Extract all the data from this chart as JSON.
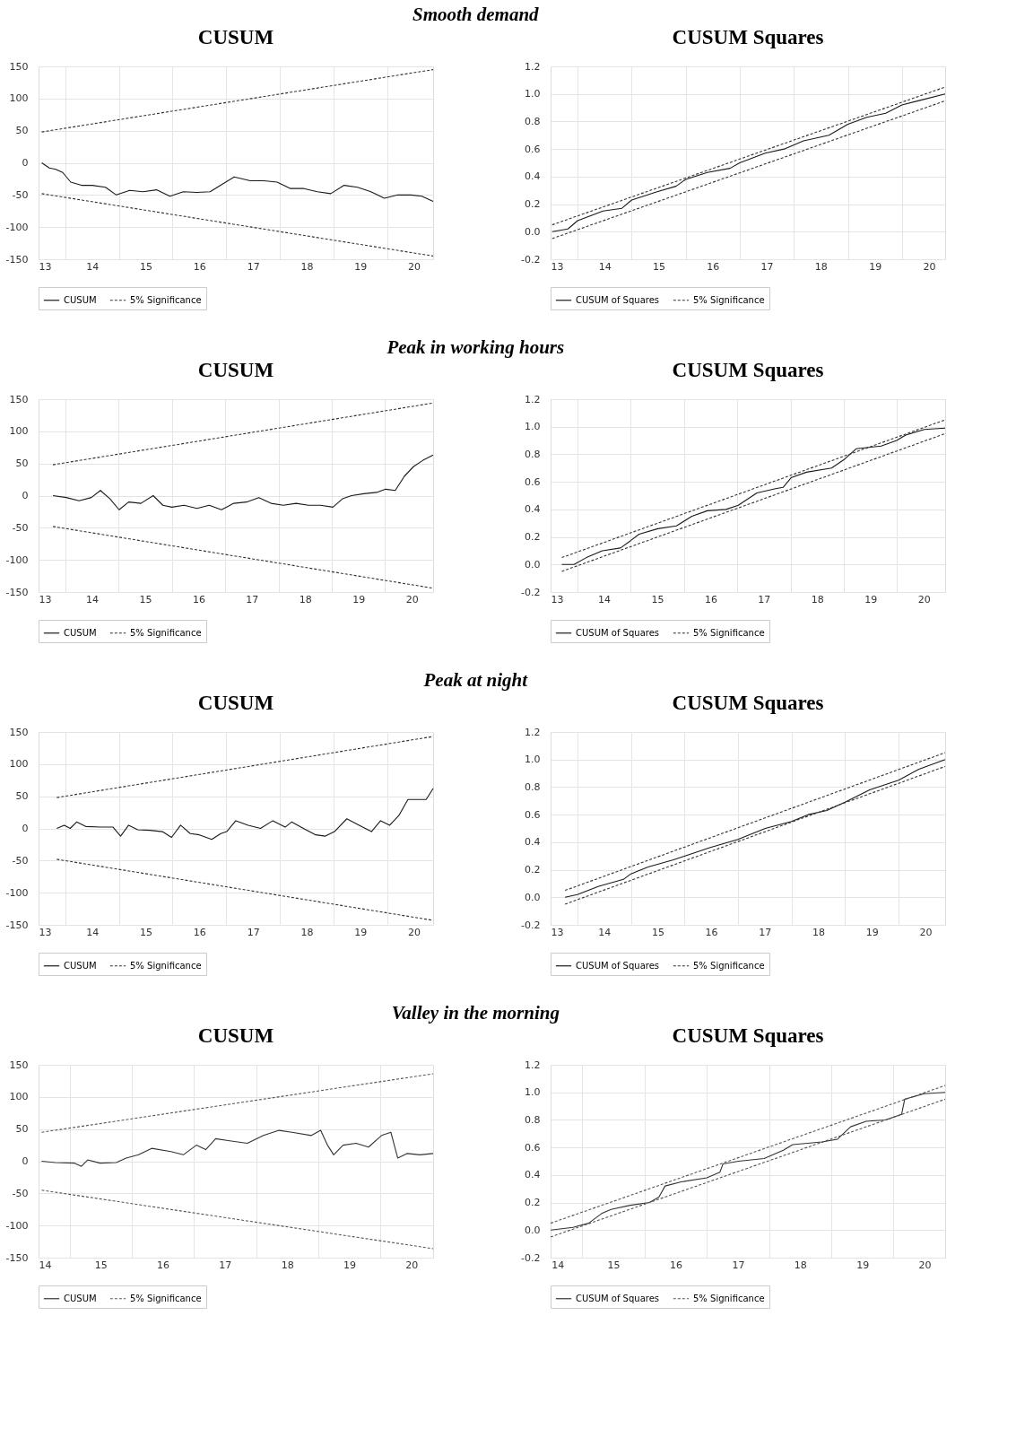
{
  "chart_data": [
    {
      "type": "line",
      "title": "CUSUM",
      "annotations": [
        "Smooth demand"
      ],
      "xlim": [
        13,
        20.36
      ],
      "ylim": [
        -150,
        150
      ],
      "yticks": [
        -150,
        -100,
        -50,
        0,
        50,
        100,
        150
      ],
      "grid": true,
      "legend": "bottom",
      "xticks": [
        13,
        {
          "value": 13.5,
          "label": null
        },
        14,
        {
          "value": 14.5,
          "label": null
        },
        15,
        {
          "value": 15.5,
          "label": null
        },
        16,
        {
          "value": 16.5,
          "label": null
        },
        17,
        {
          "value": 17.5,
          "label": null
        },
        18,
        {
          "value": 18.5,
          "label": null
        },
        19,
        {
          "value": 19.5,
          "label": null
        },
        20
      ],
      "series": [
        {
          "name": "CUSUM",
          "color": "#1a1a1a",
          "line_style": "solid",
          "x": [
            13.06,
            13.2,
            13.32,
            13.45,
            13.6,
            13.8,
            14.0,
            14.25,
            14.45,
            14.7,
            14.95,
            15.2,
            15.45,
            15.7,
            15.95,
            16.2,
            16.45,
            16.65,
            16.95,
            17.2,
            17.45,
            17.7,
            17.95,
            18.2,
            18.45,
            18.7,
            18.95,
            19.2,
            19.45,
            19.7,
            19.95,
            20.15,
            20.36
          ],
          "values": [
            0,
            -8,
            -10,
            -15,
            -30,
            -35,
            -35,
            -38,
            -50,
            -43,
            -45,
            -42,
            -52,
            -45,
            -46,
            -45,
            -32,
            -22,
            -28,
            -28,
            -30,
            -40,
            -40,
            -45,
            -48,
            -35,
            -38,
            -45,
            -55,
            -50,
            -50,
            -52,
            -60
          ]
        },
        {
          "name": "5% Significance",
          "color": "#333333",
          "line_style": "dashed",
          "x": [
            13.06,
            20.36
          ],
          "values": [
            48,
            145
          ]
        },
        {
          "color": "#333333",
          "line_style": "dashed",
          "x": [
            13.06,
            20.36
          ],
          "values": [
            -48,
            -145
          ]
        }
      ]
    },
    {
      "type": "line",
      "title": "CUSUM Squares",
      "xlim": [
        13,
        20.3
      ],
      "ylim": [
        -0.2,
        1.2
      ],
      "yticks": [
        {
          "value": -0.2,
          "label": "-0.2"
        },
        {
          "value": 0,
          "label": "0.0"
        },
        {
          "value": 0.2,
          "label": "0.2"
        },
        {
          "value": 0.4,
          "label": "0.4"
        },
        {
          "value": 0.6,
          "label": "0.6"
        },
        {
          "value": 0.8,
          "label": "0.8"
        },
        {
          "value": 1,
          "label": "1.0"
        },
        {
          "value": 1.2,
          "label": "1.2"
        }
      ],
      "grid": true,
      "legend": "bottom",
      "xticks": [
        13,
        {
          "value": 13.5,
          "label": null
        },
        14,
        {
          "value": 14.5,
          "label": null
        },
        15,
        {
          "value": 15.5,
          "label": null
        },
        16,
        {
          "value": 16.5,
          "label": null
        },
        17,
        {
          "value": 17.5,
          "label": null
        },
        18,
        {
          "value": 18.5,
          "label": null
        },
        19,
        {
          "value": 19.5,
          "label": null
        },
        20
      ],
      "series": [
        {
          "name": "CUSUM of Squares",
          "color": "#1a1a1a",
          "line_style": "solid",
          "x": [
            13.03,
            13.32,
            13.5,
            13.97,
            14.32,
            14.5,
            14.97,
            15.32,
            15.5,
            15.9,
            16.32,
            16.5,
            16.97,
            17.32,
            17.68,
            18.15,
            18.5,
            18.85,
            19.2,
            19.5,
            19.9,
            20.3
          ],
          "values": [
            0,
            0.02,
            0.08,
            0.15,
            0.17,
            0.23,
            0.29,
            0.33,
            0.38,
            0.43,
            0.46,
            0.5,
            0.57,
            0.6,
            0.66,
            0.7,
            0.78,
            0.83,
            0.86,
            0.92,
            0.96,
            1.0
          ]
        },
        {
          "name": "5% Significance",
          "color": "#333333",
          "line_style": "dashed",
          "x": [
            13.03,
            20.3
          ],
          "values": [
            0.05,
            1.05
          ]
        },
        {
          "color": "#333333",
          "line_style": "dashed",
          "x": [
            13.03,
            20.3
          ],
          "values": [
            -0.05,
            0.95
          ]
        }
      ]
    },
    {
      "type": "line",
      "title": "CUSUM",
      "annotations": [
        "Peak in working hours"
      ],
      "xlim": [
        13,
        20.4
      ],
      "ylim": [
        -150,
        150
      ],
      "yticks": [
        -150,
        -100,
        -50,
        0,
        50,
        100,
        150
      ],
      "grid": true,
      "legend": "bottom",
      "xticks": [
        13,
        {
          "value": 13.5,
          "label": null
        },
        14,
        {
          "value": 14.5,
          "label": null
        },
        15,
        {
          "value": 15.5,
          "label": null
        },
        16,
        {
          "value": 16.5,
          "label": null
        },
        17,
        {
          "value": 17.5,
          "label": null
        },
        18,
        {
          "value": 18.5,
          "label": null
        },
        19,
        {
          "value": 19.5,
          "label": null
        },
        20
      ],
      "series": [
        {
          "name": "CUSUM",
          "color": "#1a1a1a",
          "line_style": "solid",
          "x": [
            13.27,
            13.52,
            13.76,
            13.99,
            14.16,
            14.34,
            14.51,
            14.69,
            14.92,
            15.15,
            15.33,
            15.5,
            15.73,
            15.97,
            16.2,
            16.43,
            16.66,
            16.9,
            17.13,
            17.36,
            17.59,
            17.83,
            18.06,
            18.29,
            18.52,
            18.7,
            18.87,
            19.1,
            19.34,
            19.51,
            19.69,
            19.86,
            20.03,
            20.21,
            20.4
          ],
          "values": [
            0,
            -3,
            -8,
            -3,
            8,
            -5,
            -22,
            -10,
            -12,
            0,
            -15,
            -18,
            -15,
            -20,
            -15,
            -22,
            -12,
            -10,
            -3,
            -12,
            -15,
            -12,
            -15,
            -15,
            -18,
            -5,
            0,
            3,
            5,
            10,
            8,
            30,
            45,
            55,
            63
          ]
        },
        {
          "name": "5% Significance",
          "color": "#333333",
          "line_style": "dashed",
          "x": [
            13.27,
            20.4
          ],
          "values": [
            48,
            144
          ]
        },
        {
          "color": "#333333",
          "line_style": "dashed",
          "x": [
            13.27,
            20.4
          ],
          "values": [
            -48,
            -144
          ]
        }
      ]
    },
    {
      "type": "line",
      "title": "CUSUM Squares",
      "xlim": [
        13,
        20.4
      ],
      "ylim": [
        -0.2,
        1.2
      ],
      "yticks": [
        {
          "value": -0.2,
          "label": "-0.2"
        },
        {
          "value": 0,
          "label": "0.0"
        },
        {
          "value": 0.2,
          "label": "0.2"
        },
        {
          "value": 0.4,
          "label": "0.4"
        },
        {
          "value": 0.6,
          "label": "0.6"
        },
        {
          "value": 0.8,
          "label": "0.8"
        },
        {
          "value": 1,
          "label": "1.0"
        },
        {
          "value": 1.2,
          "label": "1.2"
        }
      ],
      "grid": true,
      "legend": "bottom",
      "xticks": [
        13,
        {
          "value": 13.5,
          "label": null
        },
        14,
        {
          "value": 14.5,
          "label": null
        },
        15,
        {
          "value": 15.5,
          "label": null
        },
        16,
        {
          "value": 16.5,
          "label": null
        },
        17,
        {
          "value": 17.5,
          "label": null
        },
        18,
        {
          "value": 18.5,
          "label": null
        },
        19,
        {
          "value": 19.5,
          "label": null
        },
        20
      ],
      "series": [
        {
          "name": "CUSUM of Squares",
          "color": "#1a1a1a",
          "line_style": "solid",
          "x": [
            13.21,
            13.44,
            13.67,
            13.97,
            14.31,
            14.49,
            14.66,
            15.01,
            15.36,
            15.65,
            15.94,
            16.29,
            16.52,
            16.87,
            17.22,
            17.36,
            17.51,
            17.8,
            18.27,
            18.5,
            18.73,
            19.2,
            19.49,
            19.66,
            20.01,
            20.4
          ],
          "values": [
            0,
            0.0,
            0.05,
            0.1,
            0.12,
            0.17,
            0.22,
            0.26,
            0.28,
            0.35,
            0.39,
            0.4,
            0.43,
            0.52,
            0.55,
            0.56,
            0.63,
            0.67,
            0.7,
            0.76,
            0.84,
            0.86,
            0.9,
            0.94,
            0.98,
            0.99
          ]
        },
        {
          "name": "5% Significance",
          "color": "#333333",
          "line_style": "dashed",
          "x": [
            13.21,
            20.4
          ],
          "values": [
            0.05,
            1.05
          ]
        },
        {
          "color": "#333333",
          "line_style": "dashed",
          "x": [
            13.21,
            20.4
          ],
          "values": [
            -0.05,
            0.95
          ]
        }
      ]
    },
    {
      "type": "line",
      "title": "CUSUM",
      "annotations": [
        "Peak at night"
      ],
      "xlim": [
        13,
        20.36
      ],
      "ylim": [
        -150,
        150
      ],
      "yticks": [
        -150,
        -100,
        -50,
        0,
        50,
        100,
        150
      ],
      "grid": true,
      "legend": "bottom",
      "xticks": [
        13,
        {
          "value": 13.5,
          "label": null
        },
        14,
        {
          "value": 14.5,
          "label": null
        },
        15,
        {
          "value": 15.5,
          "label": null
        },
        16,
        {
          "value": 16.5,
          "label": null
        },
        17,
        {
          "value": 17.5,
          "label": null
        },
        18,
        {
          "value": 18.5,
          "label": null
        },
        19,
        {
          "value": 19.5,
          "label": null
        },
        20
      ],
      "series": [
        {
          "name": "CUSUM",
          "color": "#1a1a1a",
          "line_style": "solid",
          "x": [
            13.34,
            13.48,
            13.59,
            13.71,
            13.88,
            14.16,
            14.39,
            14.53,
            14.68,
            14.85,
            15.08,
            15.31,
            15.48,
            15.65,
            15.83,
            16.0,
            16.23,
            16.4,
            16.51,
            16.68,
            16.91,
            17.14,
            17.37,
            17.6,
            17.72,
            17.94,
            18.17,
            18.35,
            18.52,
            18.75,
            18.98,
            19.21,
            19.38,
            19.55,
            19.72,
            19.89,
            20.12,
            20.23,
            20.36
          ],
          "values": [
            0,
            5,
            0,
            10,
            3,
            2,
            2,
            -12,
            5,
            -2,
            -3,
            -5,
            -14,
            5,
            -8,
            -10,
            -17,
            -8,
            -5,
            12,
            5,
            0,
            12,
            2,
            10,
            0,
            -10,
            -12,
            -5,
            15,
            5,
            -5,
            12,
            5,
            20,
            45,
            45,
            45,
            62
          ]
        },
        {
          "name": "5% Significance",
          "color": "#333333",
          "line_style": "dashed",
          "x": [
            13.34,
            20.36
          ],
          "values": [
            48,
            143
          ]
        },
        {
          "color": "#333333",
          "line_style": "dashed",
          "x": [
            13.34,
            20.36
          ],
          "values": [
            -48,
            -143
          ]
        }
      ]
    },
    {
      "type": "line",
      "title": "CUSUM Squares",
      "xlim": [
        13,
        20.37
      ],
      "ylim": [
        -0.2,
        1.2
      ],
      "yticks": [
        {
          "value": -0.2,
          "label": "-0.2"
        },
        {
          "value": 0,
          "label": "0.0"
        },
        {
          "value": 0.2,
          "label": "0.2"
        },
        {
          "value": 0.4,
          "label": "0.4"
        },
        {
          "value": 0.6,
          "label": "0.6"
        },
        {
          "value": 0.8,
          "label": "0.8"
        },
        {
          "value": 1,
          "label": "1.0"
        },
        {
          "value": 1.2,
          "label": "1.2"
        }
      ],
      "grid": true,
      "legend": "bottom",
      "xticks": [
        13,
        {
          "value": 13.5,
          "label": null
        },
        14,
        {
          "value": 14.5,
          "label": null
        },
        15,
        {
          "value": 15.5,
          "label": null
        },
        16,
        {
          "value": 16.5,
          "label": null
        },
        17,
        {
          "value": 17.5,
          "label": null
        },
        18,
        {
          "value": 18.5,
          "label": null
        },
        19,
        {
          "value": 19.5,
          "label": null
        },
        20
      ],
      "series": [
        {
          "name": "CUSUM of Squares",
          "color": "#1a1a1a",
          "line_style": "solid",
          "x": [
            13.27,
            13.5,
            13.9,
            14.36,
            14.5,
            14.82,
            15.28,
            15.51,
            15.97,
            16.5,
            17.01,
            17.5,
            17.81,
            18.16,
            18.5,
            18.96,
            19.5,
            19.88,
            20.37
          ],
          "values": [
            0,
            0.02,
            0.08,
            0.13,
            0.17,
            0.22,
            0.27,
            0.3,
            0.36,
            0.42,
            0.5,
            0.55,
            0.6,
            0.63,
            0.69,
            0.78,
            0.85,
            0.93,
            1.0
          ]
        },
        {
          "name": "5% Significance",
          "color": "#333333",
          "line_style": "dashed",
          "x": [
            13.27,
            20.37
          ],
          "values": [
            0.05,
            1.05
          ]
        },
        {
          "color": "#333333",
          "line_style": "dashed",
          "x": [
            13.27,
            20.37
          ],
          "values": [
            -0.05,
            0.95
          ]
        }
      ]
    },
    {
      "type": "line",
      "title": "CUSUM",
      "annotations": [
        "Valley in the morning"
      ],
      "xlim": [
        14,
        20.35
      ],
      "ylim": [
        -150,
        150
      ],
      "yticks": [
        -150,
        -100,
        -50,
        0,
        50,
        100,
        150
      ],
      "grid": true,
      "legend": "bottom",
      "xticks": [
        14,
        {
          "value": 14.5,
          "label": null
        },
        15,
        {
          "value": 15.5,
          "label": null
        },
        16,
        {
          "value": 16.5,
          "label": null
        },
        17,
        {
          "value": 17.5,
          "label": null
        },
        18,
        {
          "value": 18.5,
          "label": null
        },
        19,
        {
          "value": 19.5,
          "label": null
        },
        20
      ],
      "series": [
        {
          "name": "CUSUM",
          "color": "#333333",
          "line_style": "solid",
          "x": [
            14.05,
            14.27,
            14.58,
            14.69,
            14.79,
            14.99,
            15.25,
            15.41,
            15.61,
            15.82,
            16.13,
            16.33,
            16.54,
            16.69,
            16.85,
            17.05,
            17.36,
            17.62,
            17.87,
            18.08,
            18.39,
            18.54,
            18.65,
            18.75,
            18.9,
            19.11,
            19.31,
            19.52,
            19.67,
            19.78,
            19.93,
            20.14,
            20.35
          ],
          "values": [
            0,
            -2,
            -3,
            -8,
            2,
            -3,
            -2,
            5,
            10,
            20,
            15,
            10,
            25,
            18,
            35,
            32,
            28,
            40,
            48,
            45,
            40,
            48,
            25,
            10,
            25,
            28,
            22,
            40,
            45,
            5,
            12,
            10,
            12
          ]
        },
        {
          "name": "5% Significance",
          "color": "#555555",
          "line_style": "dashed",
          "x": [
            14.05,
            20.35
          ],
          "values": [
            45,
            136
          ]
        },
        {
          "color": "#555555",
          "line_style": "dashed",
          "x": [
            14.05,
            20.35
          ],
          "values": [
            -45,
            -136
          ]
        }
      ]
    },
    {
      "type": "line",
      "title": "CUSUM Squares",
      "xlim": [
        13.99,
        20.33
      ],
      "ylim": [
        -0.2,
        1.2
      ],
      "yticks": [
        {
          "value": -0.2,
          "label": "-0.2"
        },
        {
          "value": 0,
          "label": "0.0"
        },
        {
          "value": 0.2,
          "label": "0.2"
        },
        {
          "value": 0.4,
          "label": "0.4"
        },
        {
          "value": 0.6,
          "label": "0.6"
        },
        {
          "value": 0.8,
          "label": "0.8"
        },
        {
          "value": 1,
          "label": "1.0"
        },
        {
          "value": 1.2,
          "label": "1.2"
        }
      ],
      "grid": true,
      "legend": "bottom",
      "xticks": [
        14,
        {
          "value": 14.5,
          "label": null
        },
        15,
        {
          "value": 15.5,
          "label": null
        },
        16,
        {
          "value": 16.5,
          "label": null
        },
        17,
        {
          "value": 17.5,
          "label": null
        },
        18,
        {
          "value": 18.5,
          "label": null
        },
        19,
        {
          "value": 19.5,
          "label": null
        },
        20
      ],
      "series": [
        {
          "name": "CUSUM of Squares",
          "color": "#333333",
          "line_style": "solid",
          "x": [
            13.99,
            14.35,
            14.6,
            14.81,
            14.96,
            15.27,
            15.58,
            15.73,
            15.83,
            16.09,
            16.5,
            16.71,
            16.76,
            17.01,
            17.42,
            17.73,
            17.88,
            18.35,
            18.6,
            18.81,
            19.06,
            19.37,
            19.63,
            19.68,
            19.99,
            20.33
          ],
          "values": [
            0,
            0.02,
            0.05,
            0.12,
            0.15,
            0.18,
            0.2,
            0.24,
            0.32,
            0.35,
            0.38,
            0.42,
            0.48,
            0.5,
            0.52,
            0.58,
            0.62,
            0.64,
            0.66,
            0.75,
            0.79,
            0.8,
            0.84,
            0.95,
            0.99,
            1.0
          ]
        },
        {
          "name": "5% Significance",
          "color": "#555555",
          "line_style": "dashed",
          "x": [
            13.99,
            20.33
          ],
          "values": [
            0.05,
            1.05
          ]
        },
        {
          "color": "#555555",
          "line_style": "dashed",
          "x": [
            13.99,
            20.33
          ],
          "values": [
            -0.05,
            0.95
          ]
        }
      ]
    }
  ]
}
